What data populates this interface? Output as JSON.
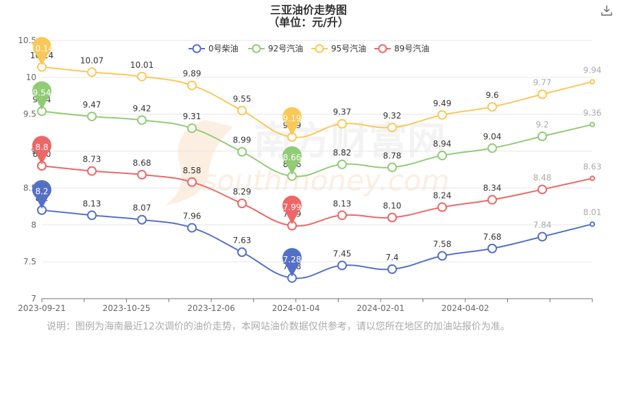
{
  "chart_data": {
    "type": "line",
    "title": "三亚油价走势图",
    "subtitle": "（单位：元/升）",
    "x_tick_labels": [
      "2023-09-21",
      "2023-10-25",
      "2023-12-06",
      "2024-01-04",
      "2024-02-01",
      "2024-04-02"
    ],
    "ylim": [
      7,
      10.5
    ],
    "y_ticks": [
      7,
      7.5,
      8,
      8.5,
      9,
      9.5,
      10,
      10.5
    ],
    "y_tick_labels": [
      "7",
      "7.5",
      "8",
      "8.5",
      "9",
      "9.5",
      "10",
      "10.5"
    ],
    "grid": true,
    "legend_position": "top-center",
    "series": [
      {
        "name": "0号柴油",
        "color": "#5470c6",
        "values": [
          8.2,
          8.13,
          8.07,
          7.96,
          7.63,
          7.28,
          7.45,
          7.4,
          7.58,
          7.68,
          7.84,
          8.01
        ],
        "labels": [
          "8.2",
          "8.13",
          "8.07",
          "7.96",
          "7.63",
          "7.28",
          "7.45",
          "7.4",
          "7.58",
          "7.68",
          "7.84",
          "8.01"
        ],
        "min_pin": "7.28",
        "max_pin": "8.2"
      },
      {
        "name": "92号汽油",
        "color": "#91cc75",
        "values": [
          9.54,
          9.47,
          9.42,
          9.31,
          8.99,
          8.66,
          8.82,
          8.78,
          8.94,
          9.04,
          9.2,
          9.36
        ],
        "labels": [
          "9.54",
          "9.47",
          "9.42",
          "9.31",
          "8.99",
          "8.66",
          "8.82",
          "8.78",
          "8.94",
          "9.04",
          "9.2",
          "9.36"
        ],
        "min_pin": "8.66",
        "max_pin": "9.54"
      },
      {
        "name": "95号汽油",
        "color": "#fac858",
        "values": [
          10.14,
          10.07,
          10.01,
          9.89,
          9.55,
          9.19,
          9.37,
          9.32,
          9.49,
          9.6,
          9.77,
          9.94
        ],
        "labels": [
          "10.14",
          "10.07",
          "10.01",
          "9.89",
          "9.55",
          "9.19",
          "9.37",
          "9.32",
          "9.49",
          "9.6",
          "9.77",
          "9.94"
        ],
        "min_pin": "9.19",
        "max_pin": "10.14"
      },
      {
        "name": "89号汽油",
        "color": "#ee6666",
        "values": [
          8.8,
          8.73,
          8.68,
          8.58,
          8.29,
          7.99,
          8.13,
          8.1,
          8.24,
          8.34,
          8.48,
          8.63
        ],
        "labels": [
          "8.80",
          "8.73",
          "8.68",
          "8.58",
          "8.29",
          "7.99",
          "8.13",
          "8.10",
          "8.24",
          "8.34",
          "8.48",
          "8.63"
        ],
        "min_pin": "7.99",
        "max_pin": "8.8"
      }
    ]
  },
  "watermark": {
    "text_cn": "南方财富网",
    "text_en": "southmoney.com"
  },
  "note": "说明：图例为海南最近12次调价的油价走势，本网站油价数据仅供参考，请以您所在地区的加油站报价为准。",
  "download_icon": "download-icon"
}
